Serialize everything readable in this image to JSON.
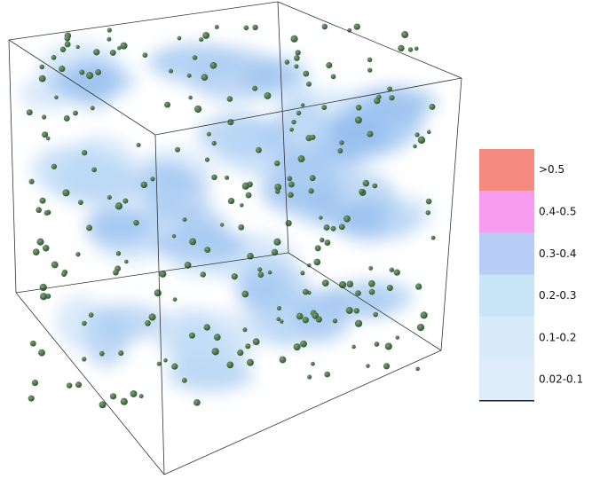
{
  "legend": {
    "items": [
      {
        "label": ">0.5",
        "color": "#f48a80"
      },
      {
        "label": "0.4-0.5",
        "color": "#f79cef"
      },
      {
        "label": "0.3-0.4",
        "color": "#b8cdf6"
      },
      {
        "label": "0.2-0.3",
        "color": "#c9e6f8"
      },
      {
        "label": "0.1-0.2",
        "color": "#d9ebf8"
      },
      {
        "label": "0.02-0.1",
        "color": "#deedf9"
      }
    ]
  }
}
